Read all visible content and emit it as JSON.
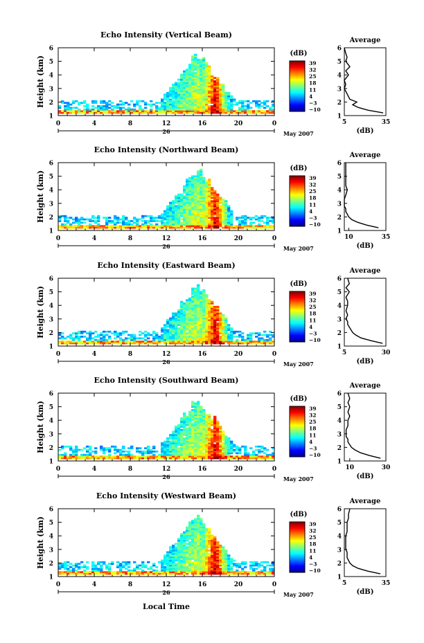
{
  "figure": {
    "xlabel": "Local Time",
    "date_label": "May 2007",
    "day_label": "26",
    "avg_title": "Average",
    "avg_xlabel": "(dB)",
    "ylabel": "Height (km)",
    "colorbar_title": "(dB)",
    "colorbar_ticks": [
      "39",
      "32",
      "25",
      "18",
      "11",
      "4",
      "−3",
      "−10"
    ],
    "x_ticks": [
      "0",
      "4",
      "8",
      "12",
      "16",
      "20",
      "0"
    ],
    "y_ticks": [
      "1",
      "2",
      "3",
      "4",
      "5",
      "6"
    ]
  },
  "colors": {
    "jet": [
      "#00008f",
      "#0000ff",
      "#0080ff",
      "#00ffff",
      "#80ff80",
      "#ffff00",
      "#ff8000",
      "#ff0000",
      "#800000"
    ]
  },
  "chart_data": [
    {
      "type": "heatmap",
      "title": "Echo Intensity (Vertical Beam)",
      "x_range_hours": [
        0,
        24
      ],
      "y_range_km": [
        1,
        6
      ],
      "color_range_db": [
        -10,
        39
      ],
      "avg_profile": {
        "title": "Average",
        "xlabel": "(dB)",
        "xlim": [
          5,
          35
        ],
        "xtick_values": [
          5,
          35
        ],
        "heights_km": [
          1.2,
          1.4,
          1.6,
          1.8,
          2.0,
          2.2,
          2.4,
          2.6,
          2.8,
          3.0,
          3.3,
          3.6,
          4.0,
          4.3,
          4.6,
          5.0,
          5.3,
          5.6,
          6.0
        ],
        "db": [
          33,
          22,
          15,
          11,
          14,
          9,
          8,
          7,
          6,
          5,
          6,
          5,
          8,
          6,
          9,
          6,
          7,
          6,
          5
        ]
      }
    },
    {
      "type": "heatmap",
      "title": "Echo Intensity (Northward Beam)",
      "x_range_hours": [
        0,
        24
      ],
      "y_range_km": [
        1,
        6
      ],
      "color_range_db": [
        -10,
        39
      ],
      "avg_profile": {
        "title": "Average",
        "xlabel": "(dB)",
        "xlim": [
          7,
          35
        ],
        "xtick_values": [
          10,
          35
        ],
        "heights_km": [
          1.2,
          1.4,
          1.6,
          1.8,
          2.0,
          2.2,
          2.4,
          2.6,
          2.8,
          3.0,
          3.3,
          3.6,
          4.0,
          4.3,
          4.6,
          5.0,
          5.3,
          5.6,
          6.0
        ],
        "db": [
          30,
          22,
          16,
          12,
          10,
          9,
          8,
          8,
          7,
          7,
          7,
          8,
          9,
          8,
          8,
          8,
          8,
          8,
          8
        ]
      }
    },
    {
      "type": "heatmap",
      "title": "Echo Intensity (Eastward Beam)",
      "x_range_hours": [
        0,
        24
      ],
      "y_range_km": [
        1,
        6
      ],
      "color_range_db": [
        -10,
        39
      ],
      "avg_profile": {
        "title": "Average",
        "xlabel": "(dB)",
        "xlim": [
          5,
          30
        ],
        "xtick_values": [
          5,
          30
        ],
        "heights_km": [
          1.2,
          1.4,
          1.6,
          1.8,
          2.0,
          2.2,
          2.4,
          2.6,
          2.8,
          3.0,
          3.3,
          3.6,
          4.0,
          4.3,
          4.6,
          5.0,
          5.3,
          5.6,
          6.0
        ],
        "db": [
          28,
          21,
          15,
          12,
          10,
          9,
          8,
          7,
          7,
          6,
          7,
          6,
          7,
          7,
          6,
          8,
          6,
          8,
          7
        ]
      }
    },
    {
      "type": "heatmap",
      "title": "Echo Intensity (Southward Beam)",
      "x_range_hours": [
        0,
        24
      ],
      "y_range_km": [
        1,
        6
      ],
      "color_range_db": [
        -10,
        39
      ],
      "avg_profile": {
        "title": "Average",
        "xlabel": "(dB)",
        "xlim": [
          7,
          30
        ],
        "xtick_values": [
          10,
          30
        ],
        "heights_km": [
          1.2,
          1.4,
          1.6,
          1.8,
          2.0,
          2.2,
          2.4,
          2.6,
          2.8,
          3.0,
          3.3,
          3.6,
          4.0,
          4.3,
          4.6,
          5.0,
          5.3,
          5.6,
          6.0
        ],
        "db": [
          27,
          21,
          16,
          13,
          11,
          10,
          9,
          9,
          8,
          8,
          8,
          9,
          9,
          10,
          9,
          10,
          9,
          10,
          9
        ]
      }
    },
    {
      "type": "heatmap",
      "title": "Echo Intensity (Westward Beam)",
      "x_range_hours": [
        0,
        24
      ],
      "y_range_km": [
        1,
        6
      ],
      "color_range_db": [
        -10,
        39
      ],
      "avg_profile": {
        "title": "Average",
        "xlabel": "(dB)",
        "xlim": [
          5,
          35
        ],
        "xtick_values": [
          5,
          35
        ],
        "heights_km": [
          1.2,
          1.4,
          1.6,
          1.8,
          2.0,
          2.2,
          2.4,
          2.6,
          2.8,
          3.0,
          3.3,
          3.6,
          4.0,
          4.3,
          4.6,
          5.0,
          5.3,
          5.6,
          6.0
        ],
        "db": [
          31,
          22,
          15,
          11,
          9,
          8,
          7,
          7,
          7,
          6,
          6,
          6,
          6,
          7,
          7,
          7,
          8,
          8,
          9
        ]
      }
    }
  ]
}
